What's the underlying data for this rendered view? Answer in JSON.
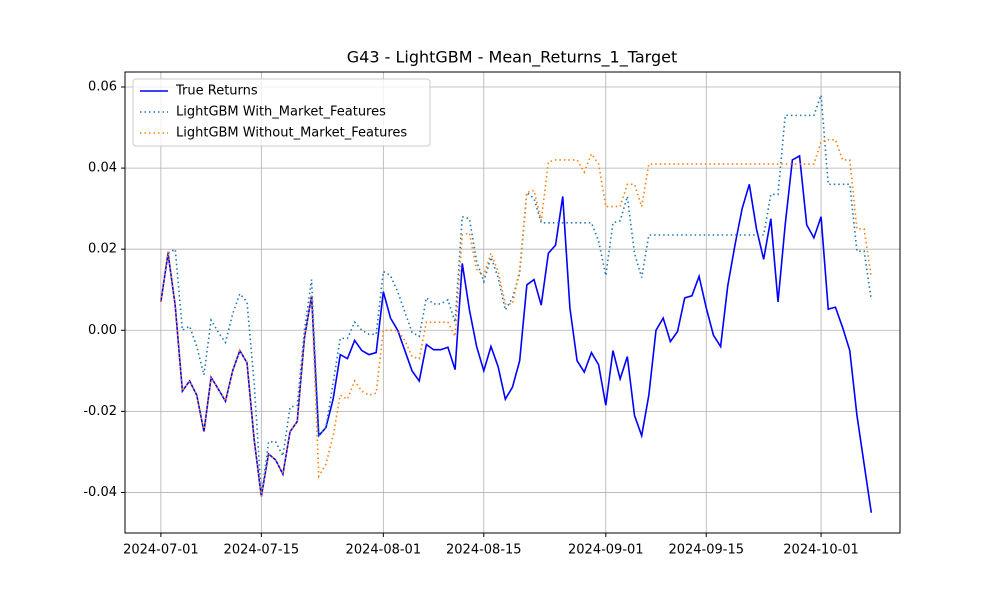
{
  "chart_data": {
    "type": "line",
    "title": "G43 - LightGBM - Mean_Returns_1_Target",
    "x": [
      "2024-07-01",
      "2024-07-02",
      "2024-07-03",
      "2024-07-04",
      "2024-07-05",
      "2024-07-06",
      "2024-07-07",
      "2024-07-08",
      "2024-07-09",
      "2024-07-10",
      "2024-07-11",
      "2024-07-12",
      "2024-07-13",
      "2024-07-14",
      "2024-07-15",
      "2024-07-16",
      "2024-07-17",
      "2024-07-18",
      "2024-07-19",
      "2024-07-20",
      "2024-07-21",
      "2024-07-22",
      "2024-07-23",
      "2024-07-24",
      "2024-07-25",
      "2024-07-26",
      "2024-07-27",
      "2024-07-28",
      "2024-07-29",
      "2024-07-30",
      "2024-07-31",
      "2024-08-01",
      "2024-08-02",
      "2024-08-03",
      "2024-08-04",
      "2024-08-05",
      "2024-08-06",
      "2024-08-07",
      "2024-08-08",
      "2024-08-09",
      "2024-08-10",
      "2024-08-11",
      "2024-08-12",
      "2024-08-13",
      "2024-08-14",
      "2024-08-15",
      "2024-08-16",
      "2024-08-17",
      "2024-08-18",
      "2024-08-19",
      "2024-08-20",
      "2024-08-21",
      "2024-08-22",
      "2024-08-23",
      "2024-08-24",
      "2024-08-25",
      "2024-08-26",
      "2024-08-27",
      "2024-08-28",
      "2024-08-29",
      "2024-08-30",
      "2024-08-31",
      "2024-09-01",
      "2024-09-02",
      "2024-09-03",
      "2024-09-04",
      "2024-09-05",
      "2024-09-06",
      "2024-09-07",
      "2024-09-08",
      "2024-09-09",
      "2024-09-10",
      "2024-09-11",
      "2024-09-12",
      "2024-09-13",
      "2024-09-14",
      "2024-09-15",
      "2024-09-16",
      "2024-09-17",
      "2024-09-18",
      "2024-09-19",
      "2024-09-20",
      "2024-09-21",
      "2024-09-22",
      "2024-09-23",
      "2024-09-24",
      "2024-09-25",
      "2024-09-26",
      "2024-09-27",
      "2024-09-28",
      "2024-09-29",
      "2024-09-30",
      "2024-10-01",
      "2024-10-02",
      "2024-10-03",
      "2024-10-04",
      "2024-10-05",
      "2024-10-06",
      "2024-10-07",
      "2024-10-08"
    ],
    "series": [
      {
        "name": "True Returns",
        "color": "#0000ff",
        "linestyle": "solid",
        "values": [
          0.007,
          0.019,
          0.006,
          -0.015,
          -0.0125,
          -0.016,
          -0.025,
          -0.0116,
          -0.0145,
          -0.0175,
          -0.01,
          -0.005,
          -0.008,
          -0.027,
          -0.041,
          -0.0305,
          -0.032,
          -0.0355,
          -0.025,
          -0.0225,
          -0.002,
          0.0085,
          -0.026,
          -0.024,
          -0.017,
          -0.006,
          -0.007,
          -0.0025,
          -0.005,
          -0.006,
          -0.0055,
          0.0095,
          0.003,
          0.0,
          -0.005,
          -0.01,
          -0.0125,
          -0.0035,
          -0.0048,
          -0.0048,
          -0.0042,
          -0.0097,
          0.0165,
          0.005,
          -0.004,
          -0.01,
          -0.004,
          -0.009,
          -0.017,
          -0.014,
          -0.0075,
          0.0112,
          0.0125,
          0.0062,
          0.019,
          0.021,
          0.033,
          0.0055,
          -0.0075,
          -0.0103,
          -0.0055,
          -0.0085,
          -0.0185,
          -0.005,
          -0.012,
          -0.0065,
          -0.021,
          -0.026,
          -0.016,
          0.0,
          0.003,
          -0.0028,
          -0.0003,
          0.008,
          0.0085,
          0.0133,
          0.0055,
          -0.0012,
          -0.004,
          0.011,
          0.021,
          0.03,
          0.036,
          0.025,
          0.0175,
          0.0275,
          0.007,
          0.026,
          0.042,
          0.043,
          0.026,
          0.0228,
          0.028,
          0.0052,
          0.0057,
          0.0007,
          -0.005,
          -0.021,
          -0.033,
          -0.045
        ]
      },
      {
        "name": "LightGBM With_Market_Features",
        "color": "#1f77b4",
        "linestyle": "dotted",
        "values": [
          0.007,
          0.019,
          0.02,
          0.0,
          0.001,
          -0.004,
          -0.011,
          0.0025,
          -0.0005,
          -0.003,
          0.004,
          0.009,
          0.007,
          -0.013,
          -0.041,
          -0.0275,
          -0.0275,
          -0.031,
          -0.019,
          -0.0185,
          0.0,
          0.0125,
          -0.026,
          -0.024,
          -0.013,
          -0.002,
          -0.002,
          0.002,
          0.0,
          -0.001,
          -0.001,
          0.0145,
          0.0135,
          0.0095,
          0.0045,
          -0.0005,
          -0.0015,
          0.008,
          0.0065,
          0.0065,
          0.0075,
          0.002,
          0.028,
          0.0275,
          0.017,
          0.012,
          0.018,
          0.013,
          0.005,
          0.008,
          0.014,
          0.034,
          0.0325,
          0.0265,
          0.0265,
          0.0265,
          0.0265,
          0.0265,
          0.0265,
          0.0265,
          0.0265,
          0.022,
          0.0135,
          0.0265,
          0.027,
          0.033,
          0.019,
          0.013,
          0.0235,
          0.0235,
          0.0235,
          0.0235,
          0.0235,
          0.0235,
          0.0235,
          0.0235,
          0.0235,
          0.0235,
          0.0235,
          0.0235,
          0.0235,
          0.0235,
          0.0235,
          0.0235,
          0.0235,
          0.0335,
          0.0335,
          0.053,
          0.053,
          0.053,
          0.053,
          0.053,
          0.058,
          0.036,
          0.036,
          0.036,
          0.036,
          0.0195,
          0.0195,
          0.0075
        ]
      },
      {
        "name": "LightGBM Without_Market_Features",
        "color": "#ff7f0e",
        "linestyle": "dotted",
        "values": [
          0.007,
          0.0195,
          0.006,
          -0.015,
          -0.0125,
          -0.016,
          -0.025,
          -0.0116,
          -0.0145,
          -0.0175,
          -0.01,
          -0.005,
          -0.008,
          -0.027,
          -0.041,
          -0.0305,
          -0.032,
          -0.0355,
          -0.025,
          -0.0225,
          -0.002,
          0.0085,
          -0.036,
          -0.033,
          -0.026,
          -0.016,
          -0.017,
          -0.0125,
          -0.015,
          -0.016,
          -0.0155,
          0.0,
          0.0,
          0.0,
          -0.0025,
          -0.0065,
          -0.007,
          0.002,
          0.002,
          0.002,
          0.002,
          -0.0015,
          0.0235,
          0.024,
          0.015,
          0.0135,
          0.019,
          0.0145,
          0.0065,
          0.0065,
          0.015,
          0.034,
          0.0345,
          0.027,
          0.0415,
          0.042,
          0.042,
          0.042,
          0.042,
          0.039,
          0.0435,
          0.041,
          0.0305,
          0.0305,
          0.0305,
          0.036,
          0.036,
          0.0305,
          0.041,
          0.041,
          0.041,
          0.041,
          0.041,
          0.041,
          0.041,
          0.041,
          0.041,
          0.041,
          0.041,
          0.041,
          0.041,
          0.041,
          0.041,
          0.041,
          0.041,
          0.041,
          0.041,
          0.041,
          0.041,
          0.041,
          0.041,
          0.041,
          0.0465,
          0.047,
          0.047,
          0.042,
          0.042,
          0.025,
          0.025,
          0.013
        ]
      }
    ],
    "xlim": [
      "2024-06-26",
      "2024-10-12"
    ],
    "xticks": [
      "2024-07-01",
      "2024-07-15",
      "2024-08-01",
      "2024-08-15",
      "2024-09-01",
      "2024-09-15",
      "2024-10-01"
    ],
    "ylim": [
      -0.05,
      0.0637
    ],
    "yticks": [
      -0.04,
      -0.02,
      {
        "value": 0,
        "label": "0.00"
      },
      0.02,
      0.04,
      0.06
    ],
    "grid": true,
    "legend": "upper left"
  }
}
